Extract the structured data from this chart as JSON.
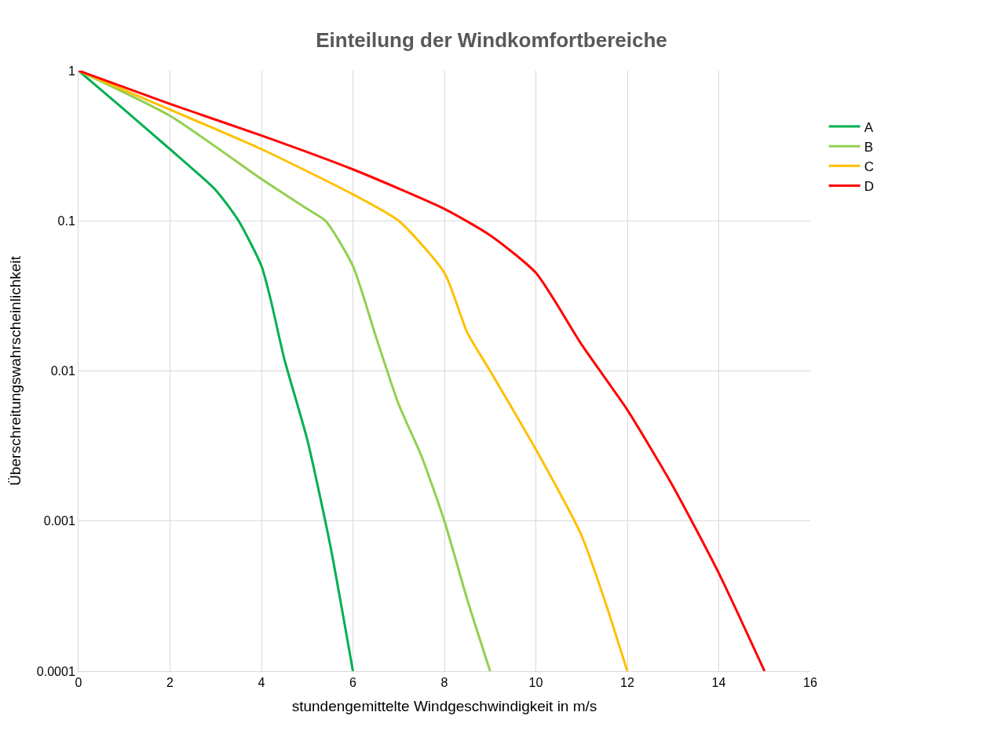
{
  "chart_data": {
    "type": "line",
    "title": "Einteilung der Windkomfortbereiche",
    "xlabel": "stundengemittelte Windgeschwindigkeit in m/s",
    "ylabel": "Überschreitungswahrscheinlichkeit",
    "log": "y",
    "xlim": [
      0,
      16
    ],
    "xticks": [
      0,
      2,
      4,
      6,
      8,
      10,
      12,
      14,
      16
    ],
    "ylim": [
      0.0001,
      1
    ],
    "yticks": [
      0.0001,
      0.001,
      0.01,
      0.1,
      1
    ],
    "grid": true,
    "legend": "right",
    "marker": "none",
    "line_style": "solid",
    "series": [
      {
        "name": "A",
        "color": "#00b050",
        "x": [
          0,
          1,
          2,
          3,
          3.5,
          4,
          4.2,
          4.5,
          5,
          5.5,
          6
        ],
        "values": [
          1,
          0.55,
          0.3,
          0.16,
          0.1,
          0.05,
          0.03,
          0.012,
          0.0035,
          0.0007,
          0.0001
        ]
      },
      {
        "name": "B",
        "color": "#92d050",
        "x": [
          0,
          2,
          4,
          5,
          5.4,
          6,
          6.5,
          7,
          7.5,
          8,
          8.5,
          9
        ],
        "values": [
          1,
          0.5,
          0.19,
          0.12,
          0.1,
          0.05,
          0.017,
          0.006,
          0.0027,
          0.001,
          0.0003,
          0.0001
        ]
      },
      {
        "name": "C",
        "color": "#ffc000",
        "x": [
          0,
          2,
          4,
          6,
          7,
          8,
          8.5,
          9,
          10,
          11,
          11.5,
          12
        ],
        "values": [
          1,
          0.55,
          0.3,
          0.15,
          0.1,
          0.045,
          0.018,
          0.01,
          0.003,
          0.0008,
          0.0003,
          0.0001
        ]
      },
      {
        "name": "D",
        "color": "#ff0000",
        "x": [
          0,
          2,
          4,
          6,
          8,
          9,
          10,
          11,
          12,
          13,
          14,
          15
        ],
        "values": [
          1,
          0.6,
          0.37,
          0.22,
          0.12,
          0.08,
          0.045,
          0.015,
          0.0055,
          0.0017,
          0.00045,
          0.0001
        ]
      }
    ]
  }
}
